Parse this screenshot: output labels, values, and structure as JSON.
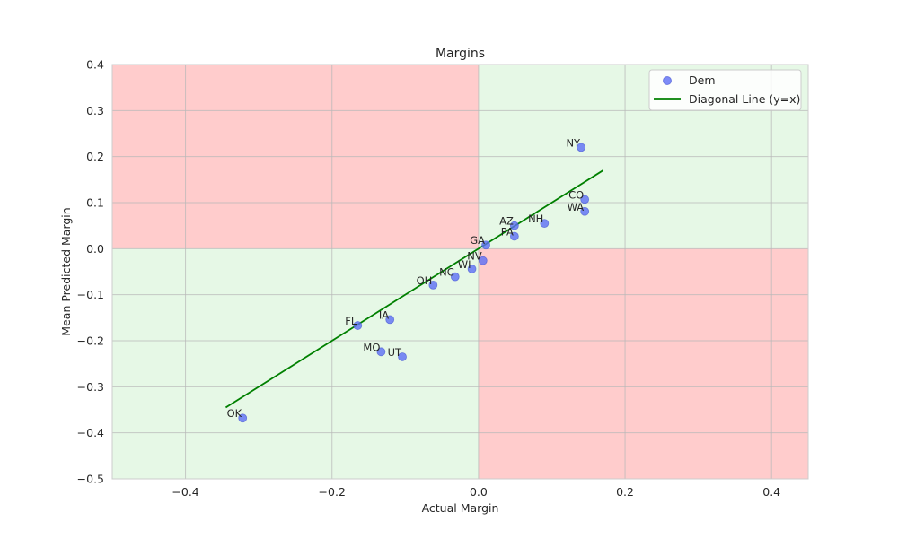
{
  "chart_data": {
    "type": "scatter",
    "title": "Margins",
    "xlabel": "Actual Margin",
    "ylabel": "Mean Predicted Margin",
    "xlim": [
      -0.5,
      0.45
    ],
    "ylim": [
      -0.5,
      0.4
    ],
    "x_ticks": [
      -0.4,
      -0.2,
      0.0,
      0.2,
      0.4
    ],
    "y_ticks": [
      -0.5,
      -0.4,
      -0.3,
      -0.2,
      -0.1,
      0.0,
      0.1,
      0.2,
      0.3,
      0.4
    ],
    "x_tick_labels": [
      "−0.4",
      "−0.2",
      "0.0",
      "0.2",
      "0.4"
    ],
    "y_tick_labels": [
      "−0.5",
      "−0.4",
      "−0.3",
      "−0.2",
      "−0.1",
      "0.0",
      "0.1",
      "0.2",
      "0.3",
      "0.4"
    ],
    "grid": true,
    "legend_position": "top-right",
    "quadrant_colors": {
      "agree": "#e6f8e6",
      "disagree": "#ffcccc"
    },
    "series": [
      {
        "name": "Dem",
        "kind": "scatter",
        "color": "#5c6ef5",
        "points": [
          {
            "label": "NY",
            "x": 0.14,
            "y": 0.22
          },
          {
            "label": "CO",
            "x": 0.145,
            "y": 0.107
          },
          {
            "label": "WA",
            "x": 0.145,
            "y": 0.081
          },
          {
            "label": "NH",
            "x": 0.09,
            "y": 0.055
          },
          {
            "label": "AZ",
            "x": 0.049,
            "y": 0.05
          },
          {
            "label": "PA",
            "x": 0.049,
            "y": 0.027
          },
          {
            "label": "GA",
            "x": 0.01,
            "y": 0.008
          },
          {
            "label": "NV",
            "x": 0.006,
            "y": -0.026
          },
          {
            "label": "WI",
            "x": -0.009,
            "y": -0.044
          },
          {
            "label": "NC",
            "x": -0.032,
            "y": -0.061
          },
          {
            "label": "OH",
            "x": -0.062,
            "y": -0.079
          },
          {
            "label": "FL",
            "x": -0.165,
            "y": -0.167
          },
          {
            "label": "IA",
            "x": -0.121,
            "y": -0.154
          },
          {
            "label": "MO",
            "x": -0.133,
            "y": -0.224
          },
          {
            "label": "UT",
            "x": -0.104,
            "y": -0.235
          },
          {
            "label": "OK",
            "x": -0.322,
            "y": -0.368
          }
        ]
      },
      {
        "name": "Diagonal Line (y=x)",
        "kind": "line",
        "color": "#008000",
        "x": [
          -0.345,
          0.17
        ],
        "y": [
          -0.345,
          0.17
        ]
      }
    ]
  }
}
